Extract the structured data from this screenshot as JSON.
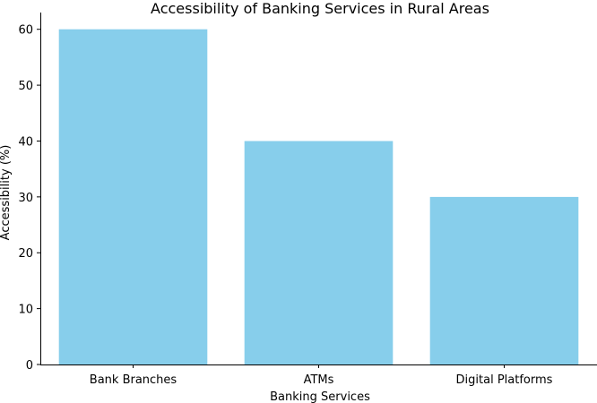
{
  "chart_data": {
    "type": "bar",
    "title": "Accessibility of Banking Services in Rural Areas",
    "xlabel": "Banking Services",
    "ylabel": "Accessibility (%)",
    "categories": [
      "Bank Branches",
      "ATMs",
      "Digital Platforms"
    ],
    "values": [
      60,
      40,
      30
    ],
    "ylim": [
      0,
      63
    ],
    "yticks": [
      0,
      10,
      20,
      30,
      40,
      50,
      60
    ],
    "bar_color": "#87ceeb",
    "grid": false,
    "legend": "none"
  }
}
